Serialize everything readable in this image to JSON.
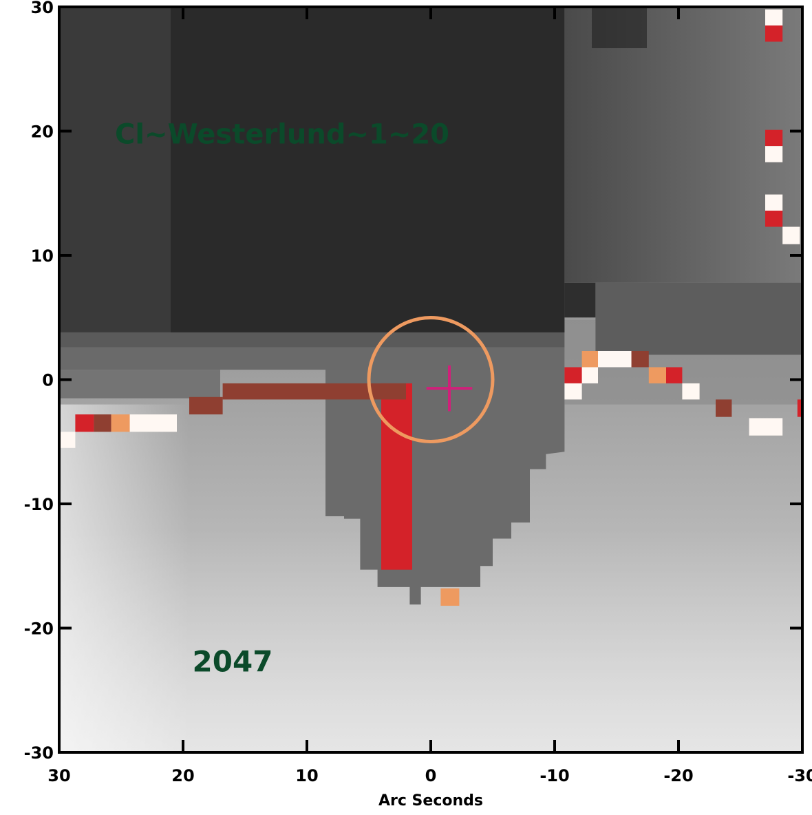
{
  "chart_data": {
    "type": "heatmap",
    "title": "",
    "xlabel": "Arc Seconds",
    "ylabel": "",
    "xlim": [
      30,
      -30
    ],
    "ylim": [
      -30,
      30
    ],
    "x_ticks": [
      30,
      20,
      10,
      0,
      -10,
      -20,
      -30
    ],
    "y_ticks": [
      30,
      20,
      10,
      0,
      -10,
      -20,
      -30
    ],
    "x_tick_labels": [
      "30",
      "20",
      "10",
      "0",
      "-10",
      "-20",
      "-30"
    ],
    "y_tick_labels": [
      "30",
      "20",
      "10",
      "0",
      "-10",
      "-20",
      "-30"
    ],
    "colormap": "grayscale",
    "annotations": [
      {
        "text": "Cl~Westerlund~1~20",
        "x": 12,
        "y": 19,
        "color": "#0b4a2a"
      },
      {
        "text": "2047",
        "x": 16,
        "y": -23.5,
        "color": "#0b4a2a"
      }
    ],
    "markers": [
      {
        "type": "circle",
        "center": [
          0,
          0
        ],
        "radius": 5,
        "color": "#ee9a60"
      },
      {
        "type": "cross",
        "center": [
          -1.5,
          -0.7
        ],
        "size": 3.7,
        "color": "#d0207a"
      }
    ],
    "regions": [
      {
        "label": "dark upper block",
        "x": [
          30,
          -12
        ],
        "y": [
          3.8,
          30
        ],
        "value": "dark"
      },
      {
        "label": "mid-gray lower region",
        "x": [
          30,
          -30
        ],
        "y": [
          -30,
          3.8
        ],
        "value": "medium"
      }
    ],
    "flagged_pixels": [
      {
        "x": [
          4,
          1.5
        ],
        "y": [
          -15.3,
          -0.3
        ],
        "color": "#d42229"
      },
      {
        "x": [
          16.8,
          2
        ],
        "y": [
          -1.6,
          -0.3
        ],
        "color": "#8f3f31"
      },
      {
        "x": [
          19.5,
          16.8
        ],
        "y": [
          -2.8,
          -1.4
        ],
        "color": "#8f3f31"
      },
      {
        "x": [
          -0.8,
          -2.3
        ],
        "y": [
          -18.2,
          -16.8
        ],
        "color": "#ee9a60"
      },
      {
        "x": [
          28.7,
          27.2
        ],
        "y": [
          -4.2,
          -2.8
        ],
        "color": "#d42229"
      },
      {
        "x": [
          27.2,
          25.8
        ],
        "y": [
          -4.2,
          -2.8
        ],
        "color": "#8f3f31"
      },
      {
        "x": [
          25.8,
          24.3
        ],
        "y": [
          -4.2,
          -2.8
        ],
        "color": "#ee9a60"
      },
      {
        "x": [
          24.3,
          20.5
        ],
        "y": [
          -4.2,
          -2.8
        ],
        "color": "#fff8f3"
      },
      {
        "x": [
          30,
          28.7
        ],
        "y": [
          -5.5,
          -4.2
        ],
        "color": "#fff8f3"
      },
      {
        "x": [
          -10.8,
          -12.2
        ],
        "y": [
          -0.3,
          1.0
        ],
        "color": "#d42229"
      },
      {
        "x": [
          -12.2,
          -13.5
        ],
        "y": [
          1.0,
          2.3
        ],
        "color": "#ee9a60"
      },
      {
        "x": [
          -13.5,
          -16.2
        ],
        "y": [
          1.0,
          2.3
        ],
        "color": "#fff8f3"
      },
      {
        "x": [
          -16.2,
          -17.6
        ],
        "y": [
          1.0,
          2.3
        ],
        "color": "#8f3f31"
      },
      {
        "x": [
          -12.2,
          -13.5
        ],
        "y": [
          -0.3,
          1.0
        ],
        "color": "#fff8f3"
      },
      {
        "x": [
          -10.8,
          -12.2
        ],
        "y": [
          -1.6,
          -0.3
        ],
        "color": "#fff8f3"
      },
      {
        "x": [
          -17.6,
          -19.0
        ],
        "y": [
          -0.3,
          1.0
        ],
        "color": "#ee9a60"
      },
      {
        "x": [
          -19.0,
          -20.3
        ],
        "y": [
          -0.3,
          1.0
        ],
        "color": "#d42229"
      },
      {
        "x": [
          -20.3,
          -21.7
        ],
        "y": [
          -1.6,
          -0.3
        ],
        "color": "#fff8f3"
      },
      {
        "x": [
          -23.0,
          -24.3
        ],
        "y": [
          -3.0,
          -1.6
        ],
        "color": "#8f3f31"
      },
      {
        "x": [
          -25.7,
          -28.4
        ],
        "y": [
          -4.5,
          -3.1
        ],
        "color": "#fff8f3"
      },
      {
        "x": [
          -29.6,
          -30
        ],
        "y": [
          -3.0,
          -1.6
        ],
        "color": "#d42229"
      },
      {
        "x": [
          -27.0,
          -28.4
        ],
        "y": [
          28.5,
          29.8
        ],
        "color": "#fff8f3"
      },
      {
        "x": [
          -27.0,
          -28.4
        ],
        "y": [
          27.2,
          28.5
        ],
        "color": "#d42229"
      },
      {
        "x": [
          -27.0,
          -28.4
        ],
        "y": [
          18.8,
          20.1
        ],
        "color": "#d42229"
      },
      {
        "x": [
          -27.0,
          -28.4
        ],
        "y": [
          17.5,
          18.8
        ],
        "color": "#fff8f3"
      },
      {
        "x": [
          -27.0,
          -28.4
        ],
        "y": [
          13.6,
          14.9
        ],
        "color": "#fff8f3"
      },
      {
        "x": [
          -27.0,
          -28.4
        ],
        "y": [
          12.3,
          13.6
        ],
        "color": "#d42229"
      },
      {
        "x": [
          -28.4,
          -29.8
        ],
        "y": [
          10.9,
          12.3
        ],
        "color": "#fff8f3"
      }
    ],
    "grid": false,
    "legend": "none"
  }
}
